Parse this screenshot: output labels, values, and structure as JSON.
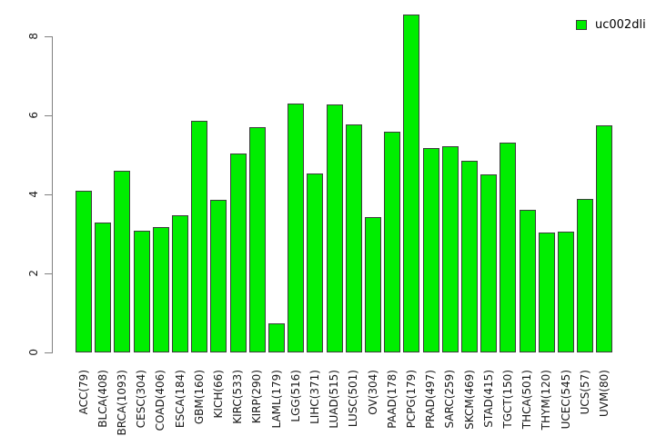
{
  "chart_data": {
    "type": "bar",
    "title": "",
    "xlabel": "",
    "ylabel": "",
    "categories": [
      "ACC(79)",
      "BLCA(408)",
      "BRCA(1093)",
      "CESC(304)",
      "COAD(406)",
      "ESCA(184)",
      "GBM(160)",
      "KICH(66)",
      "KIRC(533)",
      "KIRP(290)",
      "LAML(179)",
      "LGG(516)",
      "LIHC(371)",
      "LUAD(515)",
      "LUSC(501)",
      "OV(304)",
      "PAAD(178)",
      "PCPG(179)",
      "PRAD(497)",
      "SARC(259)",
      "SKCM(469)",
      "STAD(415)",
      "TGCT(150)",
      "THCA(501)",
      "THYM(120)",
      "UCEC(545)",
      "UCS(57)",
      "UVM(80)"
    ],
    "values": [
      4.09,
      3.29,
      4.6,
      3.07,
      3.17,
      3.47,
      5.86,
      3.86,
      5.03,
      5.7,
      0.74,
      6.3,
      4.53,
      6.28,
      5.77,
      3.43,
      5.59,
      8.55,
      5.17,
      5.22,
      4.85,
      4.51,
      5.31,
      3.61,
      3.03,
      3.06,
      3.89,
      5.75
    ],
    "ylim": [
      0,
      8
    ],
    "yticks": [
      "0",
      "2",
      "4",
      "6",
      "8"
    ],
    "grid": false,
    "legend": {
      "label": "uc002dli",
      "position": "top-right"
    },
    "colors": {
      "bar_fill": "#00EE00",
      "bar_border": "#3c3c3c",
      "axis": "#808080",
      "text": "#1a1a1a"
    }
  }
}
